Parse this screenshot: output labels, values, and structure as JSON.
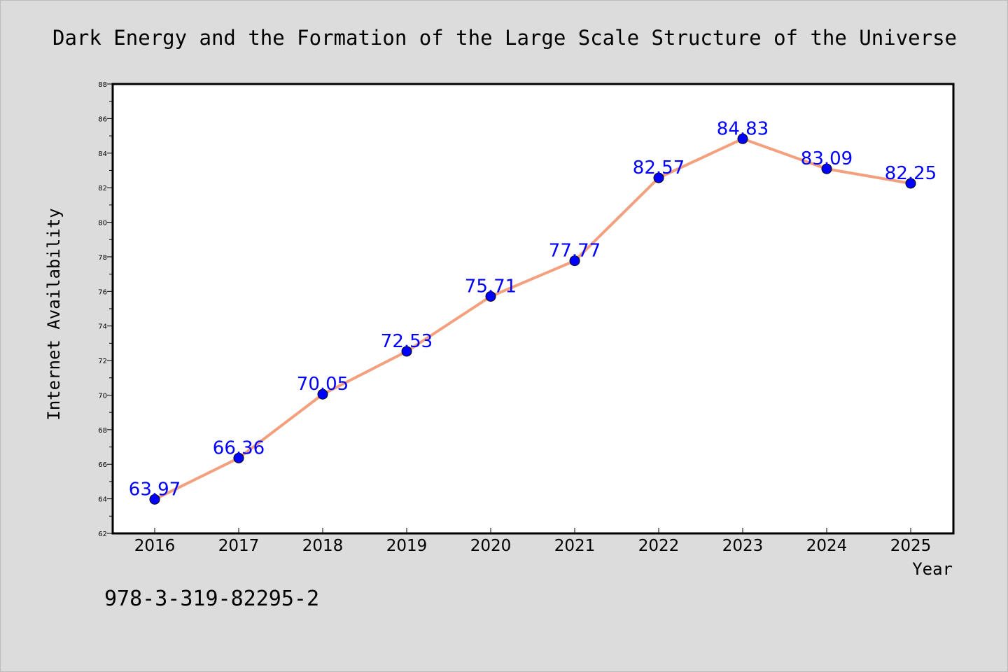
{
  "chart_data": {
    "type": "line",
    "title": "Dark Energy and the Formation of the Large Scale Structure of the Universe",
    "xlabel": "Year",
    "ylabel": "Internet Availability",
    "categories": [
      "2016",
      "2017",
      "2018",
      "2019",
      "2020",
      "2021",
      "2022",
      "2023",
      "2024",
      "2025"
    ],
    "series": [
      {
        "values": [
          63.97,
          66.36,
          70.05,
          72.53,
          75.71,
          77.77,
          82.57,
          84.83,
          83.09,
          82.25
        ]
      }
    ],
    "data_labels": [
      "63.97",
      "66.36",
      "70.05",
      "72.53",
      "75.71",
      "77.77",
      "82.57",
      "84.83",
      "83.09",
      "82.25"
    ],
    "ylim": [
      62,
      88
    ],
    "yticks": [
      "62",
      "64",
      "66",
      "68",
      "70",
      "72",
      "74",
      "76",
      "78",
      "80",
      "82",
      "84",
      "86",
      "88"
    ],
    "grid": false,
    "line_color": "#f4a07e",
    "marker_color": "#0000ff",
    "label_color": "#0000ff"
  },
  "footer": {
    "isbn": "978-3-319-82295-2"
  }
}
